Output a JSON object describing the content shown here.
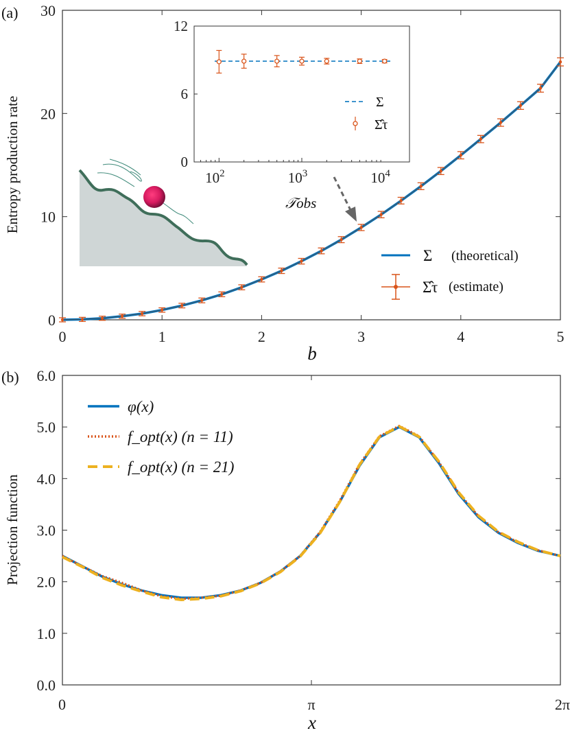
{
  "panels": {
    "a": "(a)",
    "b": "(b)"
  },
  "chart_data": [
    {
      "type": "line",
      "xlabel": "b",
      "ylabel": "Entropy production rate",
      "xlim": [
        0,
        5
      ],
      "ylim": [
        0,
        30
      ],
      "xticks": [
        "0",
        "1",
        "2",
        "3",
        "4",
        "5"
      ],
      "yticks": [
        "0",
        "10",
        "20",
        "30"
      ],
      "legend": {
        "position": "bottom-right",
        "entries": [
          "Σ",
          "(theoretical)",
          "Σ̂τ",
          "(estimate)"
        ]
      },
      "series": [
        {
          "name": "Σ (theoretical)",
          "color": "#0072BD",
          "x": [
            0,
            0.2,
            0.4,
            0.6,
            0.8,
            1.0,
            1.2,
            1.4,
            1.6,
            1.8,
            2.0,
            2.2,
            2.4,
            2.6,
            2.8,
            3.0,
            3.2,
            3.4,
            3.6,
            3.8,
            4.0,
            4.2,
            4.4,
            4.6,
            4.8,
            5.0
          ],
          "y": [
            0,
            0.04,
            0.15,
            0.35,
            0.6,
            0.95,
            1.38,
            1.88,
            2.47,
            3.15,
            3.92,
            4.75,
            5.68,
            6.68,
            7.77,
            8.95,
            10.2,
            11.55,
            12.95,
            14.42,
            15.95,
            17.52,
            19.12,
            20.77,
            22.45,
            25.0
          ]
        },
        {
          "name": "Σ̂τ (estimate)",
          "color": "#D95319",
          "x": [
            0,
            0.2,
            0.4,
            0.6,
            0.8,
            1.0,
            1.2,
            1.4,
            1.6,
            1.8,
            2.0,
            2.2,
            2.4,
            2.6,
            2.8,
            3.0,
            3.2,
            3.4,
            3.6,
            3.8,
            4.0,
            4.2,
            4.4,
            4.6,
            4.8,
            5.0
          ],
          "y": [
            0,
            0.04,
            0.15,
            0.35,
            0.6,
            0.95,
            1.38,
            1.88,
            2.47,
            3.15,
            3.92,
            4.75,
            5.68,
            6.68,
            7.77,
            8.95,
            10.2,
            11.55,
            12.95,
            14.42,
            15.95,
            17.52,
            19.12,
            20.77,
            22.45,
            25.0
          ],
          "err": [
            0.05,
            0.05,
            0.06,
            0.07,
            0.08,
            0.08,
            0.09,
            0.1,
            0.1,
            0.11,
            0.12,
            0.13,
            0.14,
            0.15,
            0.16,
            0.17,
            0.18,
            0.19,
            0.2,
            0.21,
            0.22,
            0.22,
            0.23,
            0.24,
            0.25,
            0.26
          ]
        }
      ]
    },
    {
      "type": "scatter",
      "xlabel": "𝒯obs",
      "xscale": "log",
      "xlim": [
        50,
        20000
      ],
      "ylim": [
        0,
        12
      ],
      "yticks": [
        "0",
        "6",
        "12"
      ],
      "xticks": [
        {
          "base": "10",
          "exp": "2"
        },
        {
          "base": "10",
          "exp": "3"
        },
        {
          "base": "10",
          "exp": "4"
        }
      ],
      "legend": {
        "position": "bottom-right",
        "entries": [
          "Σ",
          "Σ̂τ"
        ]
      },
      "series": [
        {
          "name": "Σ",
          "color": "#0072BD",
          "x": [
            50,
            20000
          ],
          "y": [
            8.9,
            8.9
          ]
        },
        {
          "name": "Σ̂τ",
          "color": "#D95319",
          "x": [
            100,
            200,
            500,
            1000,
            2000,
            5000,
            10000
          ],
          "y": [
            8.85,
            8.9,
            8.9,
            8.9,
            8.9,
            8.9,
            8.9
          ],
          "err": [
            1.0,
            0.62,
            0.5,
            0.35,
            0.25,
            0.2,
            0.15
          ]
        }
      ]
    },
    {
      "type": "line",
      "xlabel": "x",
      "ylabel": "Projection function",
      "xlim": [
        0,
        6.2832
      ],
      "ylim": [
        0,
        6
      ],
      "xticks": [
        "0",
        "π",
        "2π"
      ],
      "yticks": [
        "0.0",
        "1.0",
        "2.0",
        "3.0",
        "4.0",
        "5.0",
        "6.0"
      ],
      "legend": {
        "position": "top-left",
        "entries": [
          "φ(x)",
          "f_opt(x) (n = 11)",
          "f_opt(x) (n = 21)"
        ]
      },
      "series": [
        {
          "name": "φ(x)",
          "color": "#0072BD",
          "x": [
            0,
            0.25,
            0.5,
            0.75,
            1.0,
            1.25,
            1.5,
            1.75,
            2.0,
            2.25,
            2.5,
            2.75,
            3.0,
            3.25,
            3.5,
            3.75,
            4.0,
            4.25,
            4.5,
            4.75,
            5.0,
            5.25,
            5.5,
            5.75,
            6.0,
            6.2832
          ],
          "y": [
            2.5,
            2.3,
            2.1,
            1.95,
            1.83,
            1.74,
            1.69,
            1.69,
            1.74,
            1.83,
            1.98,
            2.2,
            2.5,
            2.95,
            3.55,
            4.25,
            4.8,
            5.0,
            4.8,
            4.3,
            3.7,
            3.25,
            2.95,
            2.75,
            2.6,
            2.5
          ]
        },
        {
          "name": "f_opt(x) (n = 11)",
          "color": "#D95319",
          "x": [
            0,
            0.25,
            0.5,
            0.75,
            1.0,
            1.25,
            1.5,
            1.75,
            2.0,
            2.25,
            2.5,
            2.75,
            3.0,
            3.25,
            3.5,
            3.75,
            4.0,
            4.25,
            4.5,
            4.75,
            5.0,
            5.25,
            5.5,
            5.75,
            6.0,
            6.2832
          ],
          "y": [
            2.5,
            2.3,
            2.11,
            1.98,
            1.83,
            1.72,
            1.67,
            1.69,
            1.73,
            1.83,
            1.98,
            2.2,
            2.5,
            2.96,
            3.57,
            4.28,
            4.82,
            5.02,
            4.82,
            4.32,
            3.72,
            3.27,
            2.96,
            2.76,
            2.61,
            2.5
          ]
        },
        {
          "name": "f_opt(x) (n = 21)",
          "color": "#EDB120",
          "x": [
            0,
            0.25,
            0.5,
            0.75,
            1.0,
            1.25,
            1.5,
            1.75,
            2.0,
            2.25,
            2.5,
            2.75,
            3.0,
            3.25,
            3.5,
            3.75,
            4.0,
            4.25,
            4.5,
            4.75,
            5.0,
            5.25,
            5.5,
            5.75,
            6.0,
            6.2832
          ],
          "y": [
            2.48,
            2.29,
            2.08,
            1.93,
            1.81,
            1.7,
            1.65,
            1.67,
            1.72,
            1.82,
            1.97,
            2.19,
            2.49,
            2.94,
            3.55,
            4.27,
            4.81,
            5.01,
            4.81,
            4.33,
            3.73,
            3.28,
            2.97,
            2.77,
            2.61,
            2.5
          ]
        }
      ]
    }
  ]
}
